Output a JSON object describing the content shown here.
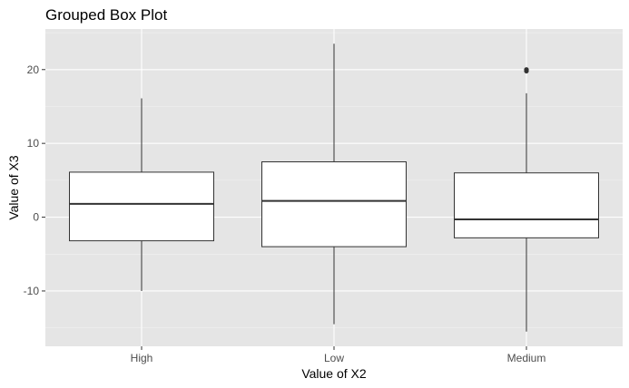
{
  "chart_data": {
    "type": "box",
    "title": "Grouped Box Plot",
    "xlabel": "Value of X2",
    "ylabel": "Value of X3",
    "categories": [
      "High",
      "Low",
      "Medium"
    ],
    "boxes": [
      {
        "category": "High",
        "whisker_low": -10.0,
        "q1": -3.2,
        "median": 1.8,
        "q3": 6.1,
        "whisker_high": 16.1,
        "outliers": []
      },
      {
        "category": "Low",
        "whisker_low": -14.5,
        "q1": -4.0,
        "median": 2.2,
        "q3": 7.5,
        "whisker_high": 23.5,
        "outliers": []
      },
      {
        "category": "Medium",
        "whisker_low": -15.5,
        "q1": -2.8,
        "median": -0.3,
        "q3": 6.0,
        "whisker_high": 16.8,
        "outliers": [
          19.8,
          20.0
        ]
      }
    ],
    "yticks": [
      -10,
      0,
      10,
      20
    ],
    "ytick_labels": [
      "-10",
      "0",
      "10",
      "20"
    ],
    "ylim": [
      -17.5,
      25.5
    ],
    "grid": true,
    "colors": {
      "panel_background": "#e5e5e5",
      "grid_major": "#ffffff",
      "box_fill": "#ffffff",
      "box_stroke": "#333333",
      "axis_text": "#4d4d4d"
    }
  }
}
